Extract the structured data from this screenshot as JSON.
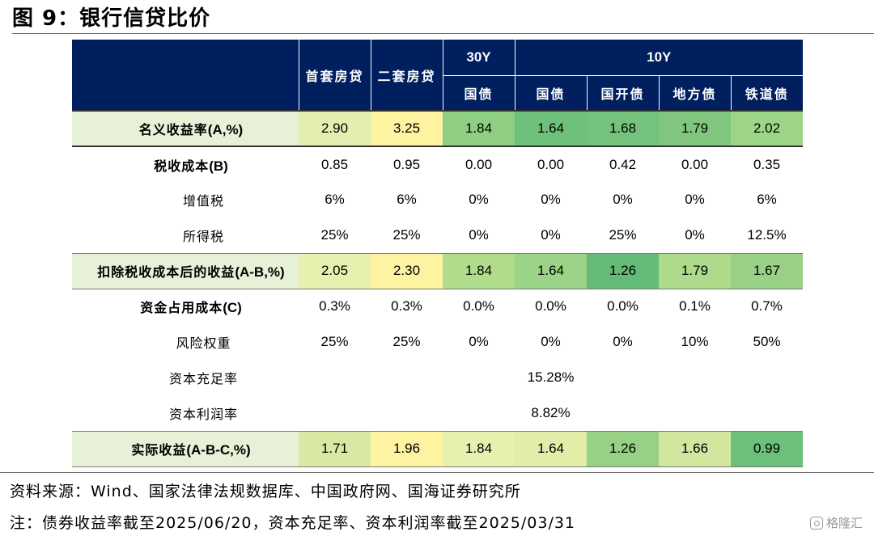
{
  "figure": {
    "title": "图 9：银行信贷比价"
  },
  "table": {
    "header": {
      "col_groups": [
        "30Y",
        "10Y"
      ],
      "columns": [
        "首套房贷",
        "二套房贷",
        "国债",
        "国债",
        "国开债",
        "地方债",
        "铁道债"
      ]
    },
    "rows": [
      {
        "label_cn": "名义收益率",
        "label_en": "(A,%)",
        "values": [
          "2.90",
          "3.25",
          "1.84",
          "1.64",
          "1.68",
          "1.79",
          "2.02"
        ],
        "colors": [
          "#e3eeb0",
          "#fdf3a0",
          "#8fcf84",
          "#6fc07a",
          "#74c27b",
          "#80c67f",
          "#9dd588"
        ]
      },
      {
        "label_cn": "税收成本",
        "label_en": "(B)",
        "values": [
          "0.85",
          "0.95",
          "0.00",
          "0.00",
          "0.42",
          "0.00",
          "0.35"
        ]
      },
      {
        "label_cn": "增值税",
        "values": [
          "6%",
          "6%",
          "0%",
          "0%",
          "0%",
          "0%",
          "6%"
        ]
      },
      {
        "label_cn": "所得税",
        "values": [
          "25%",
          "25%",
          "0%",
          "0%",
          "25%",
          "0%",
          "12.5%"
        ]
      },
      {
        "label_cn": "扣除税收成本后的收益",
        "label_en": "(A-B,%)",
        "values": [
          "2.05",
          "2.30",
          "1.84",
          "1.64",
          "1.26",
          "1.79",
          "1.67"
        ],
        "colors": [
          "#e8f0b0",
          "#fdf3a0",
          "#b1dc8c",
          "#9bd388",
          "#63bb77",
          "#addb8b",
          "#99d287"
        ]
      },
      {
        "label_cn": "资金占用成本",
        "label_en": "(C)",
        "values": [
          "0.3%",
          "0.3%",
          "0.0%",
          "0.0%",
          "0.0%",
          "0.1%",
          "0.7%"
        ]
      },
      {
        "label_cn": "风险权重",
        "values": [
          "25%",
          "25%",
          "0%",
          "0%",
          "0%",
          "10%",
          "50%"
        ]
      },
      {
        "label_cn": "资本充足率",
        "merged_value": "15.28%"
      },
      {
        "label_cn": "资本利润率",
        "merged_value": "8.82%"
      },
      {
        "label_cn": "实际收益",
        "label_en": "(A-B-C,%)",
        "values": [
          "1.71",
          "1.96",
          "1.84",
          "1.64",
          "1.26",
          "1.66",
          "0.99"
        ],
        "colors": [
          "#d9e9a4",
          "#fdf3a0",
          "#e8f0b0",
          "#e1eda9",
          "#97d185",
          "#d1e69f",
          "#6cc07a"
        ]
      }
    ]
  },
  "footer": {
    "source": "资料来源：Wind、国家法律法规数据库、中国政府网、国海证券研究所",
    "note": "注：债券收益率截至2025/06/20，资本充足率、资本利润率截至2025/03/31"
  },
  "watermark": {
    "text": "格隆汇"
  }
}
